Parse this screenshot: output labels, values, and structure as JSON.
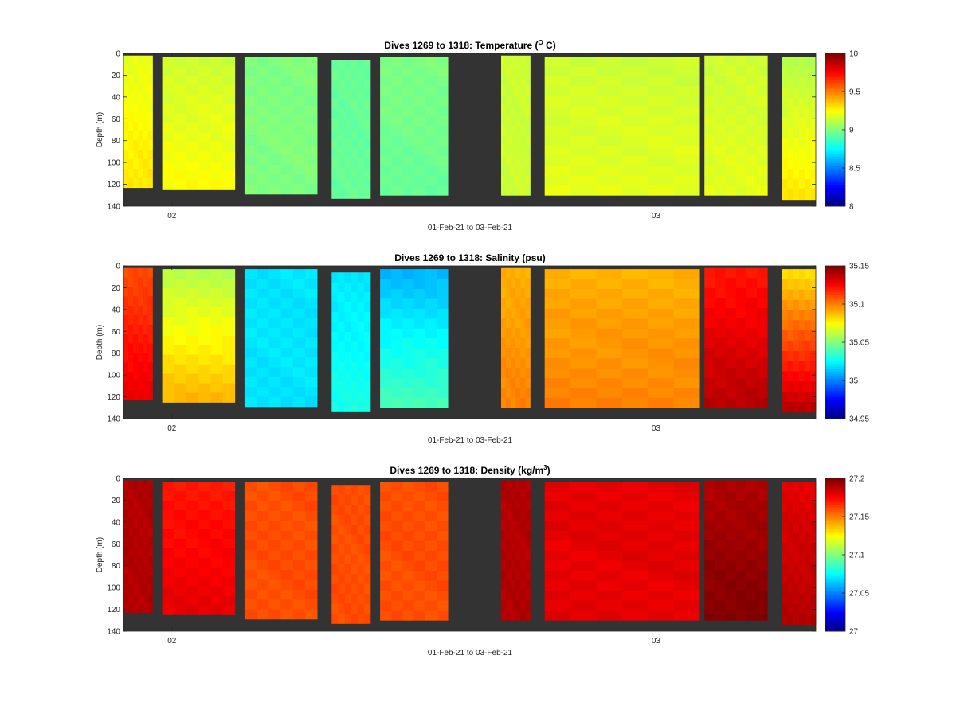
{
  "background_color": "#333333",
  "colormap": "jet",
  "x_range": [
    1.8,
    3.23
  ],
  "depth_range": [
    0,
    140
  ],
  "x_ticks": [
    {
      "value": 1.9,
      "label": "02"
    },
    {
      "value": 2.9,
      "label": "03"
    }
  ],
  "y_ticks": [
    0,
    20,
    40,
    60,
    80,
    100,
    120,
    140
  ],
  "xlabel": "01-Feb-21 to 03-Feb-21",
  "ylabel": "Depth (m)",
  "profiles": [
    {
      "x0": 1.8,
      "x1": 1.86,
      "top": 2,
      "bottom": 123
    },
    {
      "x0": 1.88,
      "x1": 2.03,
      "top": 3,
      "bottom": 125
    },
    {
      "x0": 2.05,
      "x1": 2.2,
      "top": 3,
      "bottom": 129
    },
    {
      "x0": 2.23,
      "x1": 2.31,
      "top": 6,
      "bottom": 133
    },
    {
      "x0": 2.33,
      "x1": 2.47,
      "top": 3,
      "bottom": 130
    },
    {
      "x0": 2.58,
      "x1": 2.64,
      "top": 2,
      "bottom": 130
    },
    {
      "x0": 2.67,
      "x1": 2.99,
      "top": 3,
      "bottom": 130
    },
    {
      "x0": 3.0,
      "x1": 3.13,
      "top": 2,
      "bottom": 130
    },
    {
      "x0": 3.16,
      "x1": 3.23,
      "top": 3,
      "bottom": 134
    }
  ],
  "chart_data": [
    {
      "type": "heatmap",
      "variable": "temperature",
      "title_prefix": "Dives 1269 to 1318: Temperature (",
      "title_sup": "O",
      "title_suffix": " C)",
      "clim": [
        8,
        10
      ],
      "cbar_ticks": [
        "8",
        "8.5",
        "9",
        "9.5",
        "10"
      ],
      "profile_values_top": [
        9.2,
        9.15,
        9.0,
        8.95,
        9.0,
        9.15,
        9.15,
        9.15,
        9.1
      ],
      "profile_values_bottom": [
        9.3,
        9.25,
        9.0,
        8.95,
        8.95,
        9.15,
        9.2,
        9.2,
        9.3
      ]
    },
    {
      "type": "heatmap",
      "variable": "salinity",
      "title_prefix": "Dives 1269 to 1318: Salinity (psu)",
      "title_sup": "",
      "title_suffix": "",
      "clim": [
        34.95,
        35.15
      ],
      "cbar_ticks": [
        "34.95",
        "35",
        "35.05",
        "35.1",
        "35.15"
      ],
      "profile_values_top": [
        35.11,
        35.06,
        35.02,
        35.02,
        35.01,
        35.09,
        35.09,
        35.12,
        35.08
      ],
      "profile_values_bottom": [
        35.13,
        35.09,
        35.02,
        35.03,
        35.04,
        35.1,
        35.1,
        35.14,
        35.14
      ]
    },
    {
      "type": "heatmap",
      "variable": "density",
      "title_prefix": "Dives 1269 to 1318: Density (kg/m",
      "title_sup": "3",
      "title_suffix": ")",
      "clim": [
        27,
        27.2
      ],
      "cbar_ticks": [
        "27",
        "27.05",
        "27.1",
        "27.15",
        "27.2"
      ],
      "profile_values_top": [
        27.19,
        27.17,
        27.16,
        27.16,
        27.16,
        27.19,
        27.18,
        27.19,
        27.18
      ],
      "profile_values_bottom": [
        27.19,
        27.18,
        27.16,
        27.16,
        27.16,
        27.19,
        27.18,
        27.2,
        27.19
      ]
    }
  ]
}
